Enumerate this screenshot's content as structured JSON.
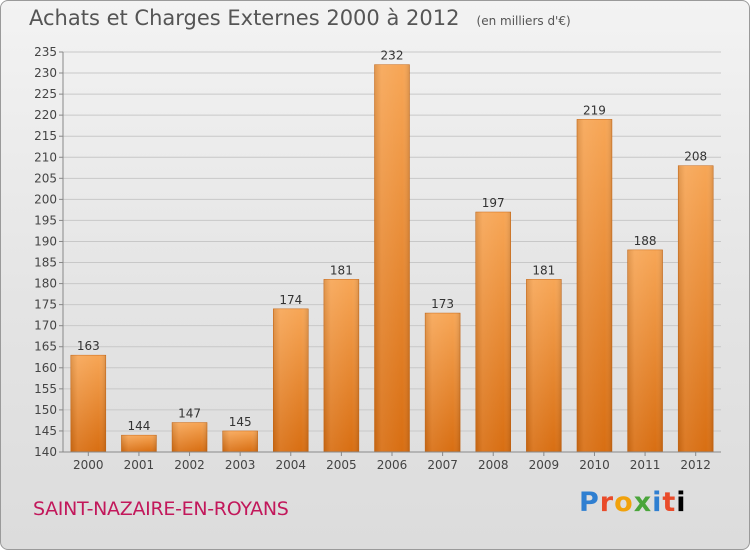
{
  "chart_data": {
    "type": "bar",
    "title": "Achats et Charges Externes 2000 à 2012",
    "subtitle": "(en milliers d'€)",
    "categories": [
      "2000",
      "2001",
      "2002",
      "2003",
      "2004",
      "2005",
      "2006",
      "2007",
      "2008",
      "2009",
      "2010",
      "2011",
      "2012"
    ],
    "values": [
      163,
      144,
      147,
      145,
      174,
      181,
      232,
      173,
      197,
      181,
      219,
      188,
      208
    ],
    "ylim": [
      140,
      235
    ],
    "yticks": [
      140,
      145,
      150,
      155,
      160,
      165,
      170,
      175,
      180,
      185,
      190,
      195,
      200,
      205,
      210,
      215,
      220,
      225,
      230,
      235
    ],
    "grid": true,
    "bar_color": "#f08a24"
  },
  "footer": {
    "commune": "SAINT-NAZAIRE-EN-ROYANS",
    "logo_letters": [
      "P",
      "r",
      "o",
      "x",
      "i",
      "t",
      "i"
    ]
  }
}
